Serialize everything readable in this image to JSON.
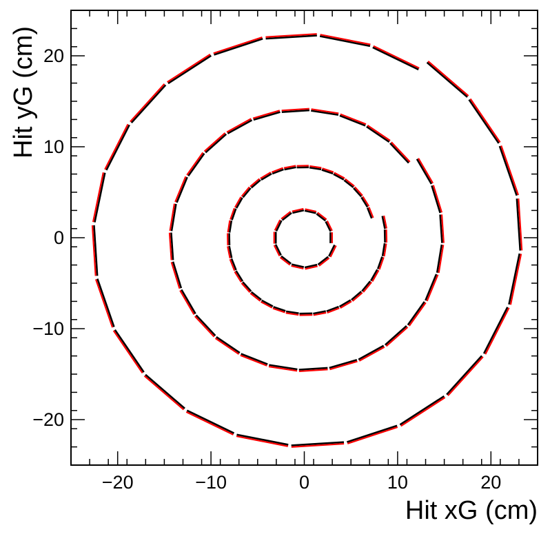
{
  "chart_data": {
    "type": "scatter",
    "title": "",
    "xlabel": "Hit xG (cm)",
    "ylabel": "Hit yG (cm)",
    "xlim": [
      -25,
      25
    ],
    "ylim": [
      -25,
      25
    ],
    "x_ticks": [
      -20,
      -10,
      0,
      10,
      20
    ],
    "y_ticks": [
      -20,
      -10,
      0,
      10,
      20
    ],
    "x_tick_labels": [
      "−20",
      "−10",
      "0",
      "10",
      "20"
    ],
    "y_tick_labels": [
      "−20",
      "−10",
      "0",
      "10",
      "20"
    ],
    "grid": false,
    "legend": "none",
    "series_colors": [
      "#000000",
      "#ff0000"
    ],
    "description_rings": [
      {
        "inner_radius": 2.8,
        "outer_radius": 3.3,
        "segments": 14
      },
      {
        "inner_radius": 7.5,
        "outer_radius": 8.7,
        "segments": 36
      },
      {
        "inner_radius": 13.8,
        "outer_radius": 14.8,
        "segments": 28
      },
      {
        "inner_radius": 22.0,
        "outer_radius": 23.2,
        "segments": 24
      }
    ]
  }
}
